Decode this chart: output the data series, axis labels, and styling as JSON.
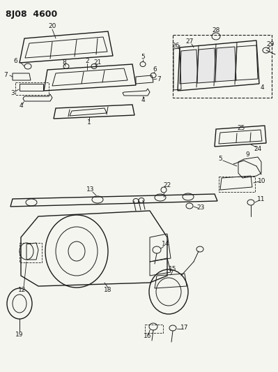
{
  "title": "8J08  4600",
  "bg_color": "#f5f5f0",
  "line_color": "#1a1a1a",
  "title_fontsize": 9,
  "label_fontsize": 6.5,
  "figsize": [
    3.99,
    5.33
  ],
  "dpi": 100
}
